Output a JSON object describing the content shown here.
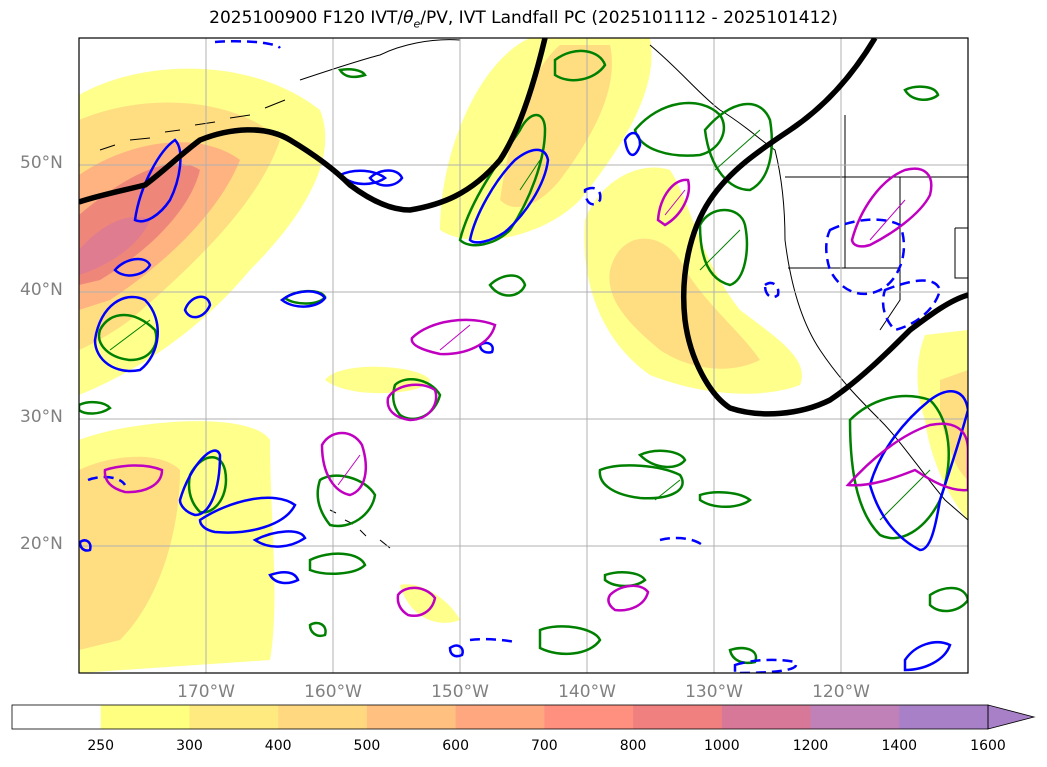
{
  "title_main": "2025100900 F120 IVT/",
  "title_symbol": "θ",
  "title_subscript": "e",
  "title_rest": "/PV, IVT Landfall PC (2025101112 - 2025101412)",
  "map": {
    "lon_range": [
      -180,
      -110
    ],
    "lat_range": [
      10,
      60
    ],
    "lat_ticks": [
      {
        "value": 50,
        "label": "50°N"
      },
      {
        "value": 40,
        "label": "40°N"
      },
      {
        "value": 30,
        "label": "30°N"
      },
      {
        "value": 20,
        "label": "20°N"
      }
    ],
    "lon_ticks": [
      {
        "value": -170,
        "label": "170°W"
      },
      {
        "value": -160,
        "label": "160°W"
      },
      {
        "value": -150,
        "label": "150°W"
      },
      {
        "value": -140,
        "label": "140°W"
      },
      {
        "value": -130,
        "label": "130°W"
      },
      {
        "value": -120,
        "label": "120°W"
      }
    ],
    "colors": {
      "landfall_contour": "#000000",
      "pv_positive": "#0000ff",
      "pv_negative": "#0000ff",
      "theta_e": "#008000",
      "ivt_pc": "#c000c0"
    }
  },
  "colorbar": {
    "levels": [
      "250",
      "300",
      "400",
      "500",
      "600",
      "700",
      "800",
      "1000",
      "1200",
      "1400",
      "1600"
    ],
    "colors": [
      "#ffffff",
      "#ffff80",
      "#ffea80",
      "#ffd880",
      "#ffc080",
      "#ffa880",
      "#ff9080",
      "#f08080",
      "#d87898",
      "#c080b8",
      "#a880c8"
    ],
    "extend": "max"
  }
}
